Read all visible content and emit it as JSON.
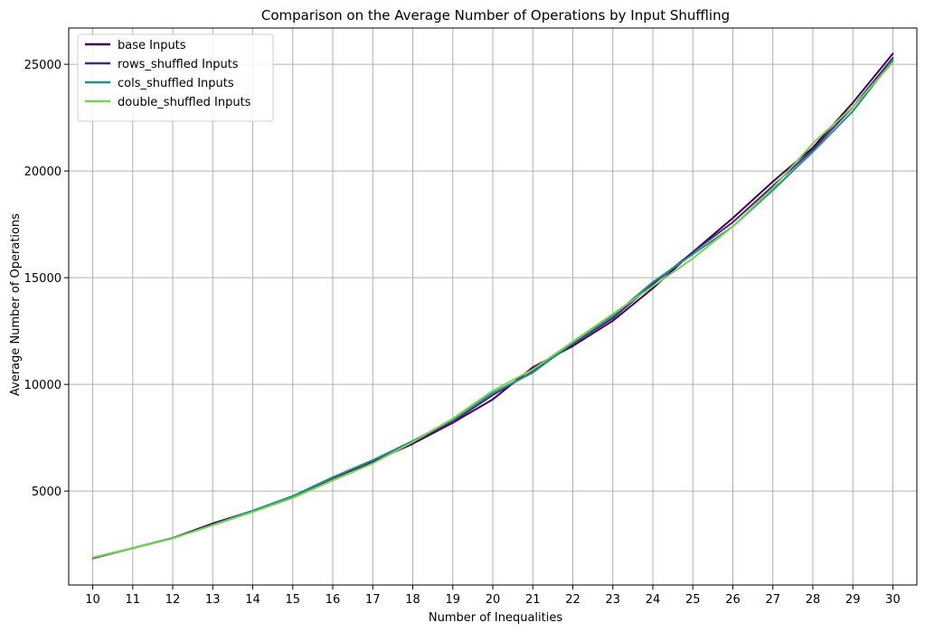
{
  "chart_data": {
    "type": "line",
    "title": "Comparison on the Average Number of Operations by Input Shuffling",
    "xlabel": "Number of Inequalities",
    "ylabel": "Average Number of Operations",
    "x": [
      10,
      11,
      12,
      13,
      14,
      15,
      16,
      17,
      18,
      19,
      20,
      21,
      22,
      23,
      24,
      25,
      26,
      27,
      28,
      29,
      30
    ],
    "x_ticks": [
      "10",
      "11",
      "12",
      "13",
      "14",
      "15",
      "16",
      "17",
      "18",
      "19",
      "20",
      "21",
      "22",
      "23",
      "24",
      "25",
      "26",
      "27",
      "28",
      "29",
      "30"
    ],
    "y_ticks": [
      5000,
      10000,
      15000,
      20000,
      25000
    ],
    "y_tick_labels": [
      "5000",
      "10000",
      "15000",
      "20000",
      "25000"
    ],
    "xlim": [
      9.4,
      30.6
    ],
    "ylim": [
      600,
      26700
    ],
    "grid": true,
    "legend_position": "top-left",
    "series": [
      {
        "name": "base Inputs",
        "color": "#440154",
        "values": [
          1850,
          2320,
          2800,
          3480,
          4080,
          4760,
          5600,
          6380,
          7220,
          8200,
          9300,
          10800,
          11800,
          12980,
          14500,
          16200,
          17800,
          19500,
          21100,
          23200,
          25500
        ]
      },
      {
        "name": "rows_shuffled Inputs",
        "color": "#482878",
        "values": [
          1850,
          2330,
          2800,
          3420,
          4070,
          4750,
          5620,
          6420,
          7300,
          8250,
          9500,
          10600,
          11900,
          13100,
          14700,
          16200,
          17600,
          19300,
          21000,
          23000,
          25300
        ]
      },
      {
        "name": "cols_shuffled Inputs",
        "color": "#21918c",
        "values": [
          1880,
          2330,
          2790,
          3420,
          4080,
          4770,
          5650,
          6450,
          7350,
          8350,
          9600,
          10550,
          11950,
          13200,
          14800,
          16100,
          17400,
          19100,
          20900,
          22800,
          25200
        ]
      },
      {
        "name": "double_shuffled Inputs",
        "color": "#7ad151",
        "values": [
          1880,
          2320,
          2780,
          3400,
          4020,
          4680,
          5500,
          6300,
          7300,
          8400,
          9700,
          10700,
          12000,
          13300,
          14600,
          15900,
          17400,
          19200,
          21300,
          23000,
          25100
        ]
      }
    ]
  }
}
